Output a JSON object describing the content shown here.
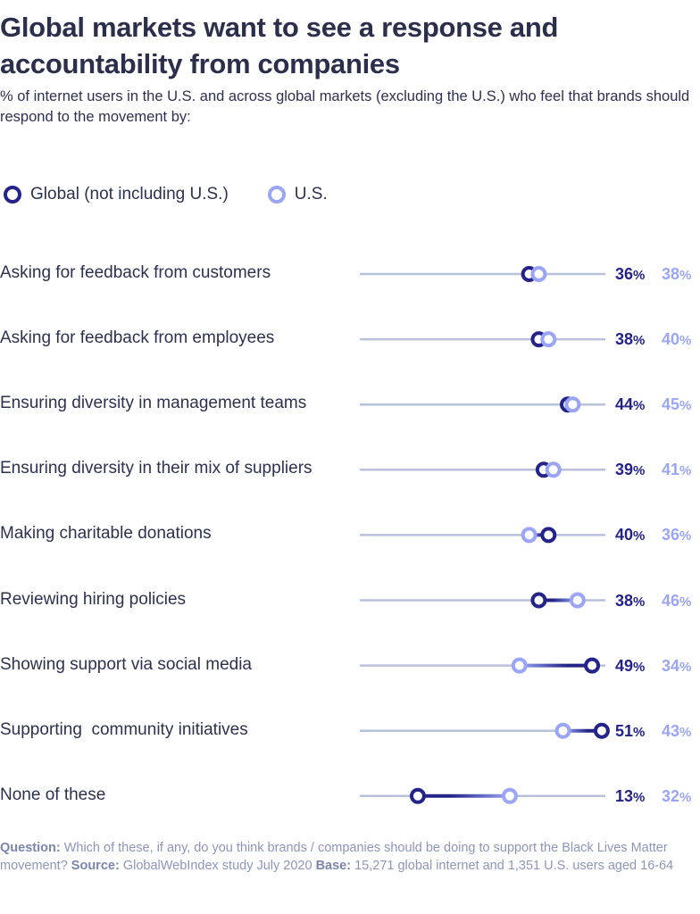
{
  "title": "Global markets want to see a response and accountability from companies",
  "subtitle": "% of internet users in the U.S. and across global markets (excluding the U.S.) who feel that brands should respond to the movement by:",
  "colors": {
    "global": "#23238a",
    "us": "#9aa6f5",
    "track": "#b9c0dc",
    "text": "#2d3150",
    "footer": "#8e95ba"
  },
  "chart_data": {
    "type": "dumbbell",
    "title": "Global markets want to see a response and accountability from companies",
    "subtitle": "% of internet users in the U.S. and across global markets (excluding the U.S.) who feel that brands should respond to the movement by:",
    "xlabel": "",
    "ylabel": "",
    "unit": "%",
    "xlim": [
      0,
      52
    ],
    "grid": false,
    "legend_position": "top-left",
    "categories": [
      "Asking for feedback from customers",
      "Asking for feedback from employees",
      "Ensuring diversity in management teams",
      "Ensuring diversity in their mix of suppliers",
      "Making charitable donations",
      "Reviewing hiring policies",
      "Showing support via social media",
      "Supporting  community initiatives",
      "None of these"
    ],
    "series": [
      {
        "name": "Global (not including U.S.)",
        "values": [
          36,
          38,
          44,
          39,
          40,
          38,
          49,
          51,
          13
        ]
      },
      {
        "name": "U.S.",
        "values": [
          38,
          40,
          45,
          41,
          36,
          46,
          34,
          43,
          32
        ]
      }
    ]
  },
  "footer": {
    "question_label": "Question:",
    "question_text": " Which of these, if any, do you think brands / companies should be doing to support the Black Lives Matter movement? ",
    "source_label": "Source:",
    "source_text": " GlobalWebIndex study July 2020 ",
    "base_label": "Base:",
    "base_text": " 15,271 global internet and 1,351 U.S. users aged 16-64"
  }
}
